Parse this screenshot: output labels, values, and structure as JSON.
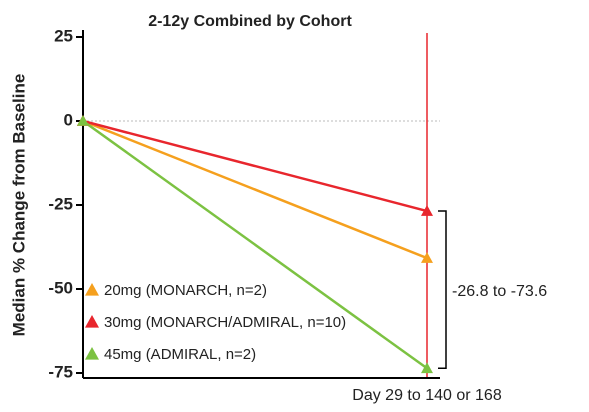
{
  "chart_data": {
    "type": "line",
    "title": "2-12y Combined by Cohort",
    "y_label": "Median % Change from Baseline",
    "categories": [
      null,
      "Day 29 to 140 or 168"
    ],
    "series": [
      {
        "name": "20mg (MONARCH, n=2)",
        "color": "#f5a01e",
        "values": [
          0,
          -40.8
        ]
      },
      {
        "name": "30mg (MONARCH/ADMIRAL, n=10)",
        "color": "#e8262d",
        "values": [
          0,
          -26.8
        ]
      },
      {
        "name": "45mg (ADMIRAL, n=2)",
        "color": "#7cc242",
        "values": [
          0,
          -73.6
        ]
      }
    ],
    "ylim": [
      -75,
      25
    ],
    "yticks": [
      25,
      0,
      -25,
      -50,
      -75
    ],
    "annotation": "-26.8 to -73.6",
    "legend": "lower left"
  }
}
